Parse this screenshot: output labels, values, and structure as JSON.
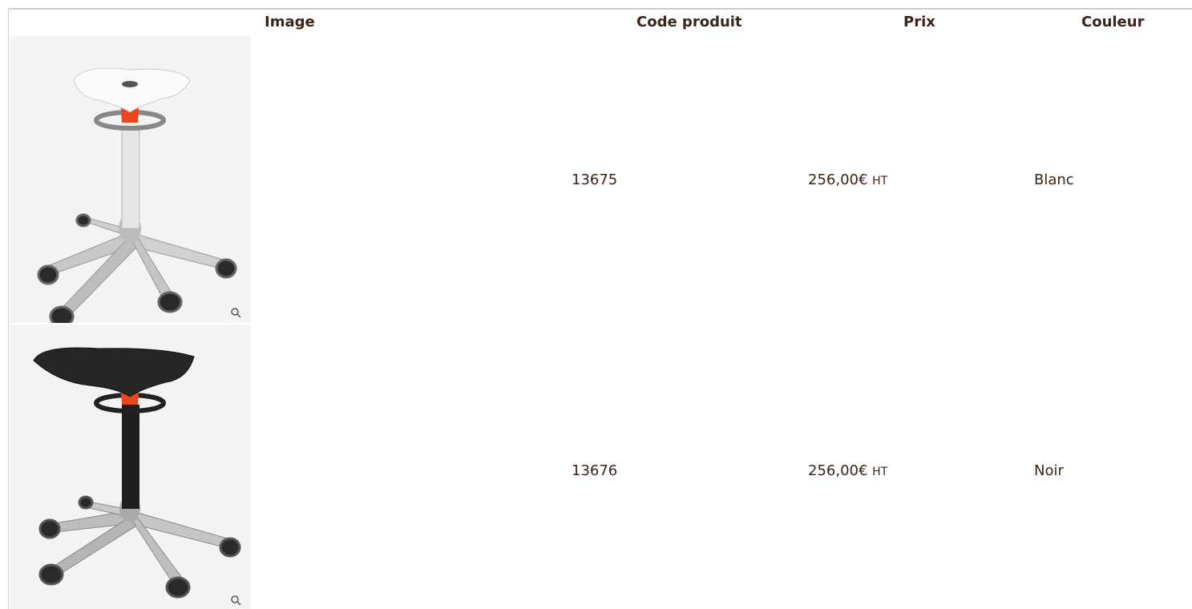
{
  "table": {
    "headers": [
      "Image",
      "Code produit",
      "Prix",
      "Couleur"
    ],
    "rows": [
      {
        "code": "13675",
        "price": "256,00€",
        "unit": "HT",
        "color": "Blanc"
      },
      {
        "code": "13676",
        "price": "256,00€",
        "unit": "HT",
        "color": "Noir"
      }
    ]
  }
}
